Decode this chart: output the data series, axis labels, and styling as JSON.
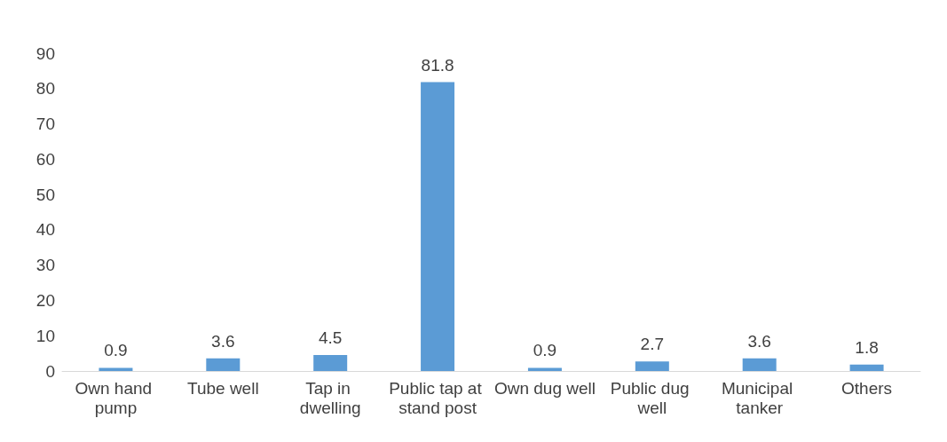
{
  "chart_data": {
    "type": "bar",
    "categories": [
      "Own hand pump",
      "Tube well",
      "Tap in dwelling",
      "Public tap at stand post",
      "Own dug well",
      "Public dug well",
      "Municipal tanker",
      "Others"
    ],
    "values": [
      0.9,
      3.6,
      4.5,
      81.8,
      0.9,
      2.7,
      3.6,
      1.8
    ],
    "color": "#5b9bd5",
    "ylim": [
      0,
      90
    ],
    "yticks": [
      0,
      10,
      20,
      30,
      40,
      50,
      60,
      70,
      80,
      90
    ],
    "grid": false,
    "data_labels": true
  }
}
